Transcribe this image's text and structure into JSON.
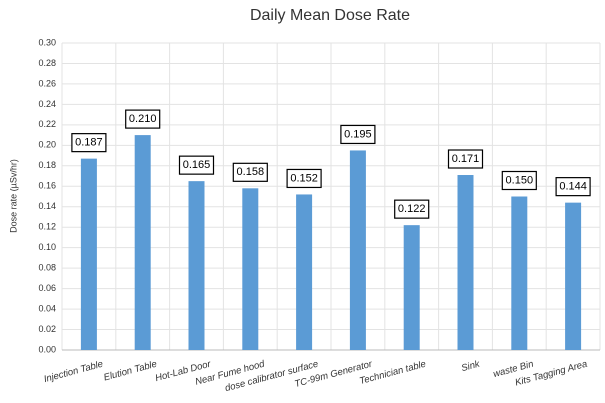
{
  "chart_data": {
    "type": "bar",
    "title": "Daily Mean Dose Rate",
    "y_label": "Dose rate (µSv/hr)",
    "categories": [
      "Injection Table",
      "Elution Table",
      "Hot-Lab Door",
      "Near Fume hood",
      "dose calibrator surface",
      "TC-99m Generator",
      "Technician table",
      "Sink",
      "waste Bin",
      "Kits Tagging Area"
    ],
    "values": [
      0.187,
      0.21,
      0.165,
      0.158,
      0.152,
      0.195,
      0.122,
      0.171,
      0.15,
      0.144
    ],
    "value_labels": [
      "0.187",
      "0.210",
      "0.165",
      "0.158",
      "0.152",
      "0.195",
      "0.122",
      "0.171",
      "0.150",
      "0.144"
    ],
    "color": "#5b9bd5",
    "ylim": [
      0,
      0.3
    ],
    "yticks": [
      {
        "value": 0,
        "label": "0.00"
      },
      {
        "value": 0.02,
        "label": "0.02"
      },
      {
        "value": 0.04,
        "label": "0.04"
      },
      {
        "value": 0.06,
        "label": "0.06"
      },
      {
        "value": 0.08,
        "label": "0.08"
      },
      {
        "value": 0.1,
        "label": "0.10"
      },
      {
        "value": 0.12,
        "label": "0.12"
      },
      {
        "value": 0.14,
        "label": "0.14"
      },
      {
        "value": 0.16,
        "label": "0.16"
      },
      {
        "value": 0.18,
        "label": "0.18"
      },
      {
        "value": 0.2,
        "label": "0.20"
      },
      {
        "value": 0.22,
        "label": "0.22"
      },
      {
        "value": 0.24,
        "label": "0.24"
      },
      {
        "value": 0.26,
        "label": "0.26"
      },
      {
        "value": 0.28,
        "label": "0.28"
      },
      {
        "value": 0.3,
        "label": "0.30"
      }
    ],
    "grid": true
  }
}
